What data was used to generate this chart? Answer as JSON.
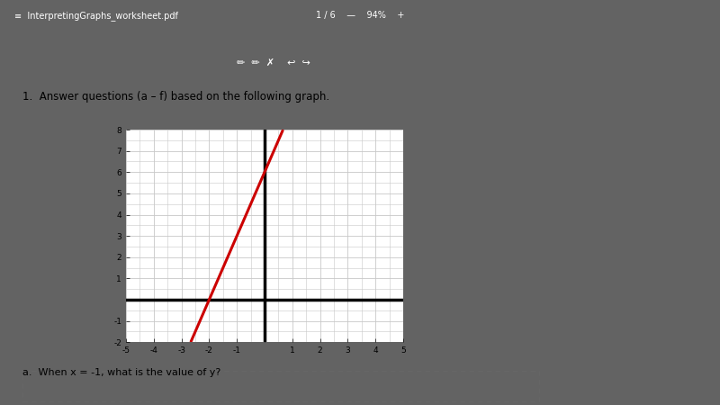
{
  "title": "1.  Answer questions (a – f) based on the following graph.",
  "question_a": "a.  When x = -1, what is the value of y?",
  "line_slope": 3,
  "line_intercept": 6,
  "x_min": -5,
  "x_max": 5,
  "y_min": -2,
  "y_max": 8,
  "line_color": "#cc0000",
  "line_width": 2.2,
  "axis_color": "#000000",
  "grid_color": "#c8c8c8",
  "background_color": "#ffffff",
  "page_background": "#636363",
  "paper_color": "#ffffff",
  "text_color": "#000000",
  "dashed_box_color": "#666666",
  "toolbar_color": "#3d3d3d",
  "toolbar2_color": "#4a4a4a"
}
